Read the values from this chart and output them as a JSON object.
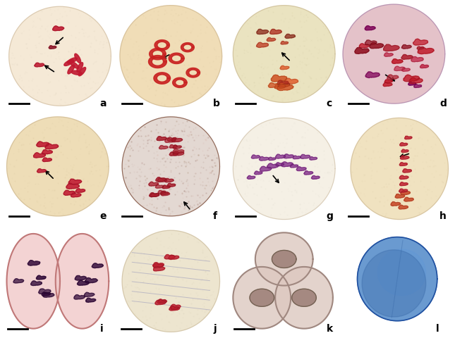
{
  "figsize": [
    6.45,
    4.81
  ],
  "dpi": 100,
  "panels": [
    "a",
    "b",
    "c",
    "d",
    "e",
    "f",
    "g",
    "h",
    "i",
    "j",
    "k",
    "l"
  ],
  "bg_colors": {
    "a": "#e8dcc8",
    "b": "#e4d0a8",
    "c": "#ddd5b0",
    "d": "#e0c8c8",
    "e": "#e2d0a8",
    "f": "#d8c0b8",
    "g": "#e8e4d8",
    "h": "#e4d4b0",
    "i": "#e8d0d0",
    "j": "#e0d8c0",
    "k": "#ddd0c8",
    "l": "#c8d4e0"
  },
  "cell_colors": {
    "a": "#e8dcc0",
    "b": "#e2cc98",
    "c": "#ddd5a8",
    "d": "#e8c8d0",
    "e": "#e2d0a0",
    "f": "#d8c8c0",
    "g": "#e8e4d4",
    "h": "#e4d4a8",
    "i": "#f0d0d0",
    "j": "#e0d8c4",
    "k": "#ddd0c4",
    "l": "#b8cce0"
  },
  "chrom_colors": {
    "a": "#c01830",
    "b": "#c82020",
    "c": "#c84030",
    "d": "#c01830",
    "e": "#c01830",
    "f": "#b02030",
    "g": "#8030a0",
    "h": "#c02030",
    "i": "#280830",
    "j": "#c02030",
    "k": "#906878",
    "l": "#3870b8"
  }
}
